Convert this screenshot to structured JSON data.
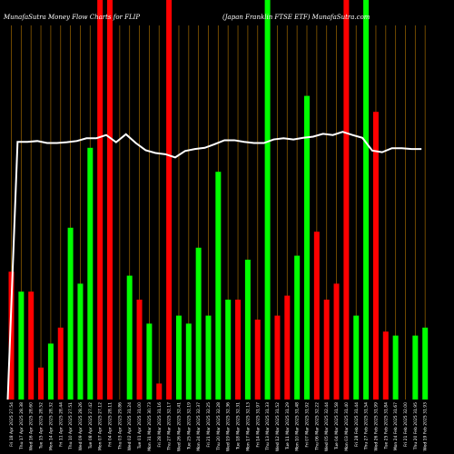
{
  "chart_data": {
    "type": "bar",
    "title_left": "MunafaSutra  Money Flow  Charts for FLIP",
    "title_right": "(Japan  Franklin  FTSE ETF) MunafaSutra.com",
    "xlabel": "",
    "ylabel": "",
    "ylim": [
      0,
      100
    ],
    "grid": "vertical",
    "colors": {
      "up": "#00ff00",
      "down": "#ff0000",
      "line": "#ffffff",
      "grid": "#8a5a00",
      "background": "#000000"
    },
    "categories": [
      "Fri 18 Apr 2025 27.54",
      "Thu 17 Apr 2025 28.38",
      "Wed 16 Apr 2025 28.60",
      "Tue 15 Apr 2025 28.52",
      "Mon 14 Apr 2025 28.32",
      "Fri 11 Apr 2025 28.44",
      "Thu 10 Apr 2025 27.51",
      "Wed 09 Apr 2025 28.26",
      "Tue 08 Apr 2025 27.42",
      "Mon 07 Apr 2025 27.12",
      "Fri 04 Apr 2025 28.11",
      "Thu 03 Apr 2025 29.86",
      "Wed 02 Apr 2025 31.24",
      "Tue 01 Apr 2025 31.00",
      "Mon 31 Mar 2025 30.73",
      "Fri 28 Mar 2025 31.16",
      "Thu 27 Mar 2025 32.17",
      "Wed 26 Mar 2025 32.41",
      "Tue 25 Mar 2025 32.19",
      "Mon 24 Mar 2025 32.37",
      "Fri 21 Mar 2025 32.25",
      "Thu 20 Mar 2025 32.28",
      "Wed 19 Mar 2025 32.36",
      "Tue 18 Mar 2025 32.31",
      "Mon 17 Mar 2025 32.13",
      "Fri 14 Mar 2025 31.97",
      "Thu 13 Mar 2025 31.33",
      "Wed 12 Mar 2025 31.52",
      "Tue 11 Mar 2025 31.29",
      "Mon 10 Mar 2025 31.48",
      "Fri 07 Mar 2025 31.92",
      "Thu 06 Mar 2025 32.22",
      "Wed 05 Mar 2025 32.44",
      "Tue 04 Mar 2025 31.58",
      "Mon 03 Mar 2025 31.40",
      "Fri 28 Feb 2025 31.44",
      "Thu 27 Feb 2025 31.54",
      "Wed 26 Feb 2025 31.99",
      "Tue 25 Feb 2025 31.84",
      "Mon 24 Feb 2025 31.67",
      "Fri 21 Feb 2025 32.00",
      "Thu 20 Feb 2025 31.95",
      "Wed 19 Feb 2025 31.93"
    ],
    "bars": [
      {
        "value": 32,
        "color": "red"
      },
      {
        "value": 27,
        "color": "green"
      },
      {
        "value": 27,
        "color": "red"
      },
      {
        "value": 8,
        "color": "red"
      },
      {
        "value": 14,
        "color": "green"
      },
      {
        "value": 18,
        "color": "red"
      },
      {
        "value": 43,
        "color": "green"
      },
      {
        "value": 29,
        "color": "green"
      },
      {
        "value": 63,
        "color": "green"
      },
      {
        "value": 100,
        "color": "red"
      },
      {
        "value": 100,
        "color": "red"
      },
      {
        "value": 0,
        "color": "red"
      },
      {
        "value": 31,
        "color": "green"
      },
      {
        "value": 25,
        "color": "red"
      },
      {
        "value": 19,
        "color": "green"
      },
      {
        "value": 4,
        "color": "red"
      },
      {
        "value": 100,
        "color": "red"
      },
      {
        "value": 21,
        "color": "green"
      },
      {
        "value": 19,
        "color": "green"
      },
      {
        "value": 38,
        "color": "green"
      },
      {
        "value": 21,
        "color": "green"
      },
      {
        "value": 57,
        "color": "green"
      },
      {
        "value": 25,
        "color": "green"
      },
      {
        "value": 25,
        "color": "red"
      },
      {
        "value": 35,
        "color": "green"
      },
      {
        "value": 20,
        "color": "red"
      },
      {
        "value": 100,
        "color": "green"
      },
      {
        "value": 21,
        "color": "red"
      },
      {
        "value": 26,
        "color": "red"
      },
      {
        "value": 36,
        "color": "green"
      },
      {
        "value": 76,
        "color": "green"
      },
      {
        "value": 42,
        "color": "red"
      },
      {
        "value": 25,
        "color": "red"
      },
      {
        "value": 29,
        "color": "red"
      },
      {
        "value": 100,
        "color": "red"
      },
      {
        "value": 21,
        "color": "green"
      },
      {
        "value": 100,
        "color": "green"
      },
      {
        "value": 72,
        "color": "red"
      },
      {
        "value": 17,
        "color": "red"
      },
      {
        "value": 16,
        "color": "green"
      },
      {
        "value": 0,
        "color": "red"
      },
      {
        "value": 16,
        "color": "green"
      },
      {
        "value": 18,
        "color": "green"
      }
    ],
    "line_values": [
      0,
      64.5,
      64.5,
      64.7,
      64.2,
      64.2,
      64.4,
      64.7,
      65.4,
      65.4,
      66.2,
      64.4,
      66.4,
      64.2,
      62.4,
      61.7,
      61.4,
      60.6,
      62.2,
      62.7,
      63.0,
      63.9,
      64.9,
      64.9,
      64.5,
      64.2,
      64.2,
      65.1,
      65.4,
      65.1,
      65.5,
      65.8,
      66.5,
      66.2,
      67.0,
      66.2,
      65.5,
      62.3,
      61.9,
      62.9,
      62.9,
      62.7,
      62.7
    ]
  }
}
